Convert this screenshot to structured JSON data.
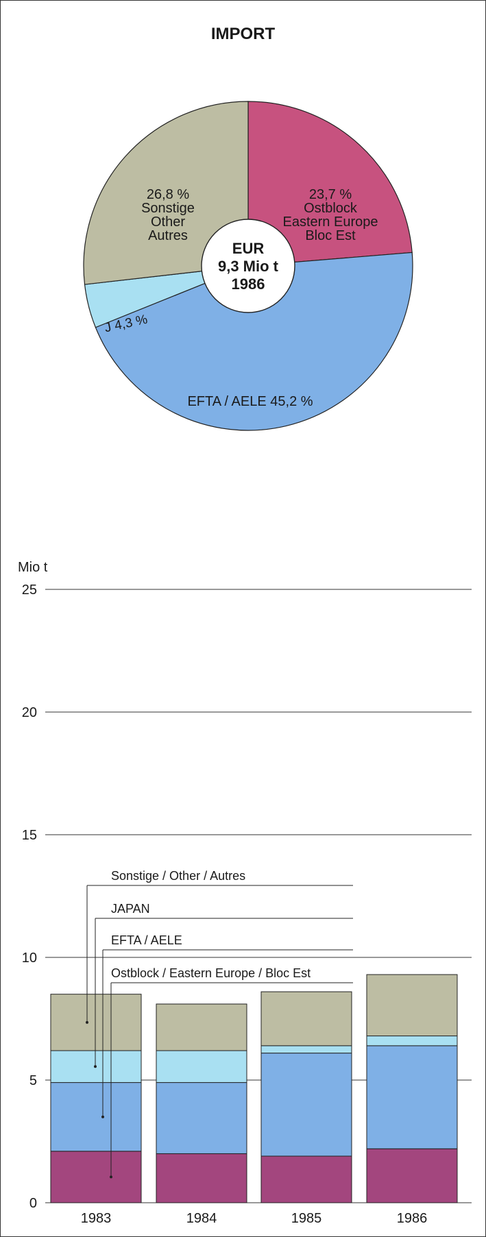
{
  "title": "IMPORT",
  "chart_data": [
    {
      "type": "pie",
      "center_label": [
        "EUR",
        "9,3 Mio t",
        "1986"
      ],
      "slices": [
        {
          "key": "ostblock",
          "value": 23.7,
          "label": [
            "23,7 %",
            "Ostblock",
            "Eastern Europe",
            "Bloc Est"
          ],
          "color": "#c7527f"
        },
        {
          "key": "efta",
          "value": 45.2,
          "label": [
            "EFTA / AELE 45,2 %"
          ],
          "color": "#7fb0e6"
        },
        {
          "key": "japan",
          "value": 4.3,
          "label": [
            "J 4,3 %"
          ],
          "color": "#a9e0f2"
        },
        {
          "key": "sonstige",
          "value": 26.8,
          "label": [
            "26,8 %",
            "Sonstige",
            "Other",
            "Autres"
          ],
          "color": "#bdbda3"
        }
      ]
    },
    {
      "type": "bar",
      "stacked": true,
      "ylabel": "Mio t",
      "ylim": [
        0,
        25
      ],
      "yticks": [
        0,
        5,
        10,
        15,
        20,
        25
      ],
      "grid": true,
      "categories": [
        "1983",
        "1984",
        "1985",
        "1986"
      ],
      "series": [
        {
          "key": "ostblock",
          "name": "Ostblock / Eastern Europe / Bloc Est",
          "color": "#a3467e",
          "values": [
            2.1,
            2.0,
            1.9,
            2.2
          ]
        },
        {
          "key": "efta",
          "name": "EFTA / AELE",
          "color": "#7fb0e6",
          "values": [
            2.8,
            2.9,
            4.2,
            4.2
          ]
        },
        {
          "key": "japan",
          "name": "JAPAN",
          "color": "#a9e0f2",
          "values": [
            1.3,
            1.3,
            0.3,
            0.4
          ]
        },
        {
          "key": "sonstige",
          "name": "Sonstige / Other / Autres",
          "color": "#bdbda3",
          "values": [
            2.3,
            1.9,
            2.2,
            2.5
          ]
        }
      ]
    }
  ]
}
